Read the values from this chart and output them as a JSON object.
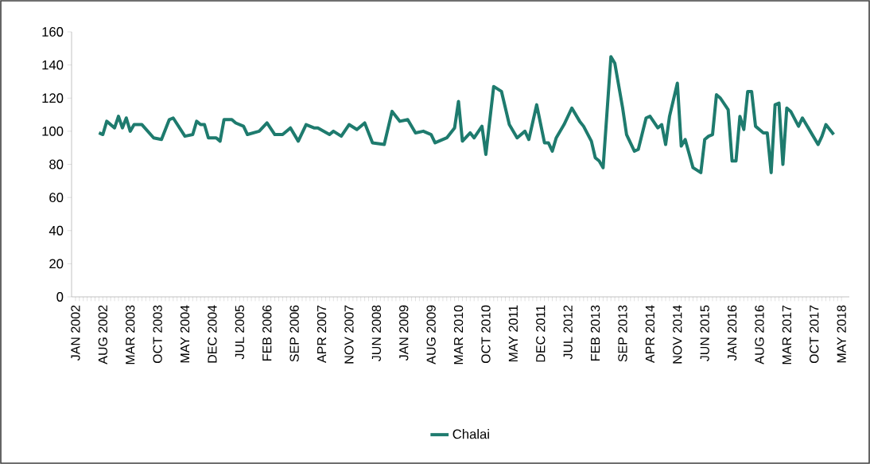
{
  "chart_data": {
    "type": "line",
    "x": [
      "2002-07",
      "2002-08",
      "2002-09",
      "2002-11",
      "2002-12",
      "2003-01",
      "2003-02",
      "2003-03",
      "2003-04",
      "2003-06",
      "2003-09",
      "2003-11",
      "2004-01",
      "2004-02",
      "2004-05",
      "2004-07",
      "2004-08",
      "2004-09",
      "2004-10",
      "2004-11",
      "2005-01",
      "2005-02",
      "2005-03",
      "2005-05",
      "2005-06",
      "2005-08",
      "2005-09",
      "2005-12",
      "2006-02",
      "2006-04",
      "2006-06",
      "2006-08",
      "2006-10",
      "2006-12",
      "2007-02",
      "2007-03",
      "2007-06",
      "2007-07",
      "2007-09",
      "2007-11",
      "2008-01",
      "2008-03",
      "2008-05",
      "2008-08",
      "2008-10",
      "2008-12",
      "2009-02",
      "2009-04",
      "2009-06",
      "2009-08",
      "2009-09",
      "2009-12",
      "2010-02",
      "2010-03",
      "2010-04",
      "2010-06",
      "2010-07",
      "2010-09",
      "2010-10",
      "2010-12",
      "2011-02",
      "2011-04",
      "2011-06",
      "2011-08",
      "2011-09",
      "2011-11",
      "2012-01",
      "2012-02",
      "2012-03",
      "2012-04",
      "2012-06",
      "2012-08",
      "2012-10",
      "2012-11",
      "2013-01",
      "2013-02",
      "2013-03",
      "2013-04",
      "2013-06",
      "2013-07",
      "2013-09",
      "2013-10",
      "2013-12",
      "2014-01",
      "2014-03",
      "2014-04",
      "2014-06",
      "2014-07",
      "2014-08",
      "2014-09",
      "2014-11",
      "2014-12",
      "2015-01",
      "2015-03",
      "2015-05",
      "2015-06",
      "2015-07",
      "2015-08",
      "2015-09",
      "2015-10",
      "2015-12",
      "2016-01",
      "2016-02",
      "2016-03",
      "2016-04",
      "2016-05",
      "2016-06",
      "2016-07",
      "2016-09",
      "2016-10",
      "2016-11",
      "2016-12",
      "2017-01",
      "2017-02",
      "2017-03",
      "2017-04",
      "2017-06",
      "2017-07",
      "2017-09",
      "2017-11",
      "2017-12",
      "2018-01",
      "2018-03"
    ],
    "series": [
      {
        "name": "Chalai",
        "color": "#1e7b6e",
        "values": [
          99,
          98,
          106,
          102,
          109,
          102,
          108,
          100,
          104,
          104,
          96,
          95,
          107,
          108,
          97,
          98,
          106,
          104,
          104,
          96,
          96,
          94,
          107,
          107,
          105,
          103,
          98,
          100,
          105,
          98,
          98,
          102,
          94,
          104,
          102,
          102,
          98,
          100,
          97,
          104,
          101,
          105,
          93,
          92,
          112,
          106,
          107,
          99,
          100,
          98,
          93,
          96,
          102,
          118,
          94,
          99,
          96,
          103,
          86,
          127,
          124,
          104,
          96,
          100,
          95,
          116,
          93,
          93,
          88,
          96,
          104,
          114,
          106,
          103,
          94,
          84,
          82,
          78,
          145,
          141,
          114,
          98,
          88,
          89,
          108,
          109,
          102,
          104,
          92,
          109,
          129,
          91,
          95,
          78,
          75,
          95,
          97,
          98,
          122,
          120,
          113,
          82,
          82,
          109,
          101,
          124,
          124,
          103,
          99,
          99,
          75,
          116,
          117,
          80,
          114,
          112,
          103,
          108,
          100,
          92,
          97,
          104,
          98
        ]
      }
    ],
    "xlim": [
      "2001-12",
      "2018-07"
    ],
    "xticks": [
      {
        "value": "2002-01",
        "label": "JAN 2002"
      },
      {
        "value": "2002-08",
        "label": "AUG 2002"
      },
      {
        "value": "2003-03",
        "label": "MAR 2003"
      },
      {
        "value": "2003-10",
        "label": "OCT 2003"
      },
      {
        "value": "2004-05",
        "label": "MAY 2004"
      },
      {
        "value": "2004-12",
        "label": "DEC 2004"
      },
      {
        "value": "2005-07",
        "label": "JUL 2005"
      },
      {
        "value": "2006-02",
        "label": "FEB 2006"
      },
      {
        "value": "2006-09",
        "label": "SEP 2006"
      },
      {
        "value": "2007-04",
        "label": "APR 2007"
      },
      {
        "value": "2007-11",
        "label": "NOV 2007"
      },
      {
        "value": "2008-06",
        "label": "JUN 2008"
      },
      {
        "value": "2009-01",
        "label": "JAN 2009"
      },
      {
        "value": "2009-08",
        "label": "AUG 2009"
      },
      {
        "value": "2010-03",
        "label": "MAR 2010"
      },
      {
        "value": "2010-10",
        "label": "OCT 2010"
      },
      {
        "value": "2011-05",
        "label": "MAY 2011"
      },
      {
        "value": "2011-12",
        "label": "DEC 2011"
      },
      {
        "value": "2012-07",
        "label": "JUL 2012"
      },
      {
        "value": "2013-02",
        "label": "FEB 2013"
      },
      {
        "value": "2013-09",
        "label": "SEP 2013"
      },
      {
        "value": "2014-04",
        "label": "APR 2014"
      },
      {
        "value": "2014-11",
        "label": "NOV 2014"
      },
      {
        "value": "2015-06",
        "label": "JUN 2015"
      },
      {
        "value": "2016-01",
        "label": "JAN 2016"
      },
      {
        "value": "2016-08",
        "label": "AUG 2016"
      },
      {
        "value": "2017-03",
        "label": "MAR 2017"
      },
      {
        "value": "2017-10",
        "label": "OCT 2017"
      },
      {
        "value": "2018-05",
        "label": "MAY 2018"
      }
    ],
    "ylim": [
      0,
      160
    ],
    "yticks": [
      0,
      20,
      40,
      60,
      80,
      100,
      120,
      140,
      160
    ],
    "legend": "bottom",
    "grid": false,
    "marker": "none",
    "line_style": "solid"
  }
}
